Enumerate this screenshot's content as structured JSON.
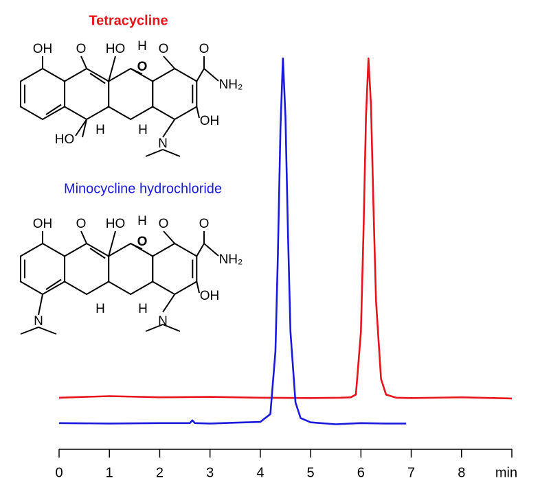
{
  "chart_data": {
    "type": "line",
    "xlim": [
      0,
      9
    ],
    "ylim": [
      0,
      100
    ],
    "xticks": [
      0,
      1,
      2,
      3,
      4,
      5,
      6,
      7,
      8,
      {
        "value": 9,
        "label": "min"
      }
    ],
    "series": [
      {
        "name": "Tetracycline",
        "color": "#e8141b",
        "x": [
          0,
          1,
          2,
          3,
          4,
          5,
          5.6,
          5.8,
          5.9,
          6.0,
          6.05,
          6.1,
          6.15,
          6.2,
          6.25,
          6.3,
          6.4,
          6.5,
          6.7,
          7,
          8,
          9
        ],
        "values": [
          13.2,
          13.6,
          13.3,
          13.4,
          13.2,
          13.1,
          13.2,
          13.3,
          14,
          30,
          55,
          85,
          100,
          88,
          62,
          38,
          18,
          14,
          13.2,
          13.1,
          13.3,
          13.0
        ]
      },
      {
        "name": "Minocycline hydrochloride",
        "color": "#1a1adc",
        "x": [
          0,
          1,
          2,
          2.6,
          2.65,
          2.7,
          3,
          3.5,
          4,
          4.2,
          4.3,
          4.35,
          4.4,
          4.45,
          4.5,
          4.55,
          4.6,
          4.7,
          4.8,
          5,
          5.5,
          6,
          6.5,
          6.9
        ],
        "values": [
          6.7,
          6.6,
          6.7,
          6.7,
          7.4,
          6.7,
          6.6,
          6.8,
          7,
          9,
          25,
          50,
          82,
          100,
          85,
          55,
          30,
          12,
          8,
          6.9,
          6.4,
          6.7,
          6.6,
          6.6
        ]
      }
    ]
  },
  "structures": [
    {
      "atom_labels": [
        "OH",
        "O",
        "HO",
        "H",
        "O",
        "O",
        "O",
        "NH₂",
        "OH",
        "HO",
        "H",
        "H",
        "N"
      ]
    },
    {
      "atom_labels": [
        "OH",
        "O",
        "HO",
        "H",
        "O",
        "O",
        "O",
        "NH₂",
        "OH",
        "N",
        "H",
        "H",
        "N"
      ]
    }
  ]
}
